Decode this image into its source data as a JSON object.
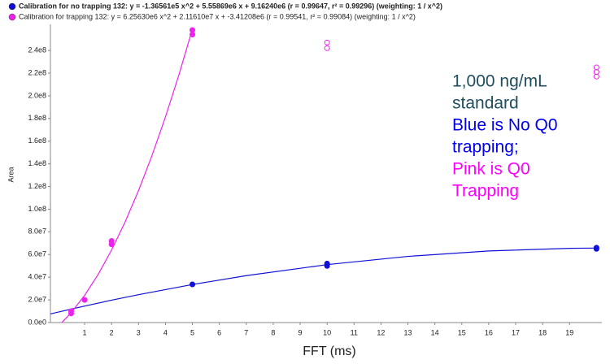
{
  "chart_data": {
    "type": "scatter",
    "xlabel": "FFT (ms)",
    "ylabel": "Area",
    "xlim": [
      -0.27,
      20.2
    ],
    "ylim": [
      0,
      263000000
    ],
    "xticks": [
      1,
      2,
      3,
      4,
      5,
      6,
      7,
      8,
      9,
      10,
      11,
      12,
      13,
      14,
      15,
      16,
      17,
      18,
      19
    ],
    "yticks": [
      {
        "value": 0,
        "label": "0.0e0"
      },
      {
        "value": 20000000,
        "label": "2.0e7"
      },
      {
        "value": 40000000,
        "label": "4.0e7"
      },
      {
        "value": 60000000,
        "label": "6.0e7"
      },
      {
        "value": 80000000,
        "label": "8.0e7"
      },
      {
        "value": 100000000,
        "label": "1.0e8"
      },
      {
        "value": 120000000,
        "label": "1.2e8"
      },
      {
        "value": 140000000,
        "label": "1.4e8"
      },
      {
        "value": 160000000,
        "label": "1.6e8"
      },
      {
        "value": 180000000,
        "label": "1.8e8"
      },
      {
        "value": 200000000,
        "label": "2.0e8"
      },
      {
        "value": 220000000,
        "label": "2.2e8"
      },
      {
        "value": 240000000,
        "label": "2.4e8"
      }
    ],
    "series": [
      {
        "name": "Calibration for no trapping 132: y = -1.36561e5 x^2 + 5.55869e6 x + 9.16240e6 (r = 0.99647, r² = 0.99296)  (weighting: 1 / x^2)",
        "color": "#1010d8",
        "x": [
          5,
          10,
          10,
          20,
          20
        ],
        "values": [
          33700000,
          50000000,
          52000000,
          65000000,
          66000000
        ],
        "hollow": [
          false,
          false,
          false,
          false,
          false
        ],
        "fit": {
          "x": [
            -0.27,
            1,
            2,
            3,
            5,
            7,
            10,
            13,
            16,
            19,
            20
          ],
          "values": [
            7652000,
            14585000,
            19734000,
            24609000,
            33542000,
            41381000,
            51093000,
            58346000,
            63141000,
            65479000,
            65712000
          ]
        }
      },
      {
        "name": "Calibration for trapping 132: y = 6.25630e6 x^2 + 2.11610e7 x + -3.41208e6 (r = 0.99541, r² = 0.99084)  (weighting: 1 / x^2)",
        "color": "#ee22ee",
        "x": [
          0.5,
          0.5,
          1,
          2,
          2,
          5,
          5,
          10,
          10,
          20,
          20,
          20
        ],
        "values": [
          8000000,
          10000000,
          20000000,
          69000000,
          72000000,
          254000000,
          258000000,
          242000000,
          247000000,
          217000000,
          221000000,
          225000000
        ],
        "hollow": [
          false,
          false,
          false,
          false,
          false,
          false,
          false,
          true,
          true,
          true,
          true,
          true
        ],
        "fit": {
          "x": [
            0.16,
            0.5,
            1,
            1.5,
            2,
            2.5,
            3,
            3.5,
            4,
            4.5,
            5
          ],
          "values": [
            134000,
            8733000,
            24005000,
            42407000,
            63935000,
            88593000,
            116378000,
            147292000,
            181333000,
            218503000,
            258801000
          ]
        }
      }
    ],
    "annotations": [
      {
        "text": "1,000 ng/mL",
        "color": "#1f4e5f"
      },
      {
        "text": "standard",
        "color": "#1f4e5f"
      },
      {
        "text": "Blue is No Q0",
        "color": "#0000ee"
      },
      {
        "text": "trapping;",
        "color": "#0000ee"
      },
      {
        "text": "Pink is Q0",
        "color": "#ff00ff"
      },
      {
        "text": "Trapping",
        "color": "#ff00ff"
      }
    ]
  }
}
